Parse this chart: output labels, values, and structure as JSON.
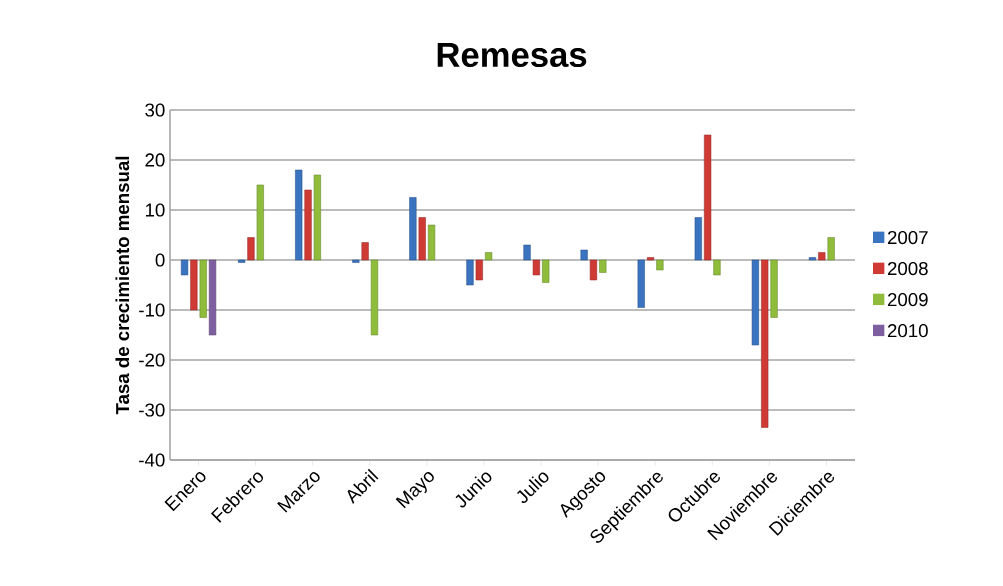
{
  "chart_data": {
    "type": "bar",
    "title": "Remesas",
    "ylabel": "Tasa de crecimiento mensual",
    "categories": [
      "Enero",
      "Febrero",
      "Marzo",
      "Abril",
      "Mayo",
      "Junio",
      "Julio",
      "Agosto",
      "Septiembre",
      "Octubre",
      "Noviembre",
      "Diciembre"
    ],
    "series": [
      {
        "name": "2007",
        "color": "#3a73c0",
        "values": [
          -3,
          -0.5,
          18,
          -0.5,
          12.5,
          -5,
          3,
          2,
          -9.5,
          8.5,
          -17,
          0.5
        ]
      },
      {
        "name": "2008",
        "color": "#d03a35",
        "values": [
          -10,
          4.5,
          14,
          3.5,
          8.5,
          -4,
          -3,
          -4,
          0.5,
          25,
          -33.5,
          1.5
        ]
      },
      {
        "name": "2009",
        "color": "#8fbc3a",
        "values": [
          -11.5,
          15,
          17,
          -15,
          7,
          1.5,
          -4.5,
          -2.5,
          -2,
          -3,
          -11.5,
          4.5
        ]
      },
      {
        "name": "2010",
        "color": "#7d5fa0",
        "values": [
          -15,
          null,
          null,
          null,
          null,
          null,
          null,
          null,
          null,
          null,
          null,
          null
        ]
      }
    ],
    "ylim": [
      -40,
      30
    ],
    "yticks": [
      -40,
      -30,
      -20,
      -10,
      0,
      10,
      20,
      30
    ],
    "grid": "y",
    "legend": "right"
  }
}
